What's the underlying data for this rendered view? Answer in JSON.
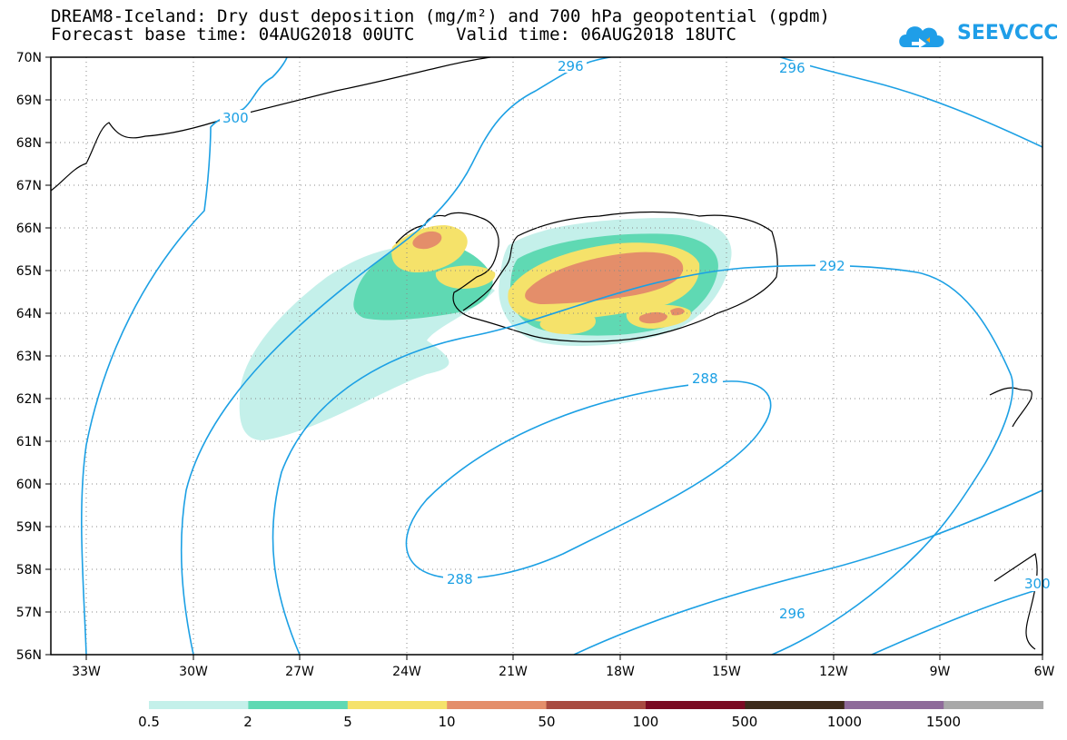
{
  "title_line1": "DREAM8-Iceland: Dry dust deposition (mg/m²) and 700 hPa geopotential (gpdm)",
  "title_line2": "Forecast base time: 04AUG2018 00UTC    Valid time: 06AUG2018 18UTC",
  "logo_text": "SEEVCCC",
  "lat_labels": [
    "70N",
    "69N",
    "68N",
    "67N",
    "66N",
    "65N",
    "64N",
    "63N",
    "62N",
    "61N",
    "60N",
    "59N",
    "58N",
    "57N",
    "56N"
  ],
  "lon_labels": [
    "33W",
    "30W",
    "27W",
    "24W",
    "21W",
    "18W",
    "15W",
    "12W",
    "9W",
    "6W"
  ],
  "contour_labels": [
    "300",
    "296",
    "296",
    "292",
    "288",
    "288",
    "296",
    "300"
  ],
  "legend": {
    "colors": [
      "#c4f0ea",
      "#5fd9b3",
      "#f5e26a",
      "#e48e6a",
      "#a84a40",
      "#7a0a22",
      "#3d2a1a",
      "#8e6a9a",
      "#a8a8a8"
    ],
    "labels": [
      "0.5",
      "2",
      "5",
      "10",
      "50",
      "100",
      "500",
      "1000",
      "1500"
    ]
  }
}
